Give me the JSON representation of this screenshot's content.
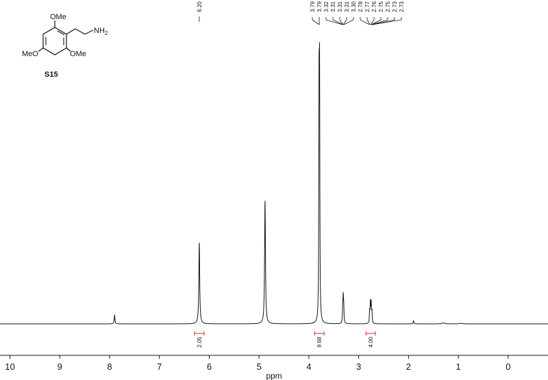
{
  "chart_data": {
    "type": "line",
    "title": "",
    "xlabel": "ppm",
    "ylabel": "",
    "xlim": [
      10.2,
      -0.8
    ],
    "x_reversed": true,
    "xticks": [
      "10",
      "9",
      "8",
      "7",
      "6",
      "5",
      "4",
      "3",
      "2",
      "1",
      "0"
    ],
    "grid": false,
    "peaks": [
      {
        "shift": 7.9,
        "height": 0.03,
        "width": 0.008
      },
      {
        "shift": 6.2,
        "height": 0.27,
        "width": 0.01
      },
      {
        "shift": 4.88,
        "height": 0.41,
        "width": 0.01
      },
      {
        "shift": 3.795,
        "height": 0.73,
        "width": 0.006
      },
      {
        "shift": 3.785,
        "height": 0.72,
        "width": 0.006
      },
      {
        "shift": 3.32,
        "height": 0.05,
        "width": 0.006
      },
      {
        "shift": 3.31,
        "height": 0.08,
        "width": 0.006
      },
      {
        "shift": 3.3,
        "height": 0.05,
        "width": 0.006
      },
      {
        "shift": 2.78,
        "height": 0.04,
        "width": 0.006
      },
      {
        "shift": 2.765,
        "height": 0.065,
        "width": 0.006
      },
      {
        "shift": 2.75,
        "height": 0.065,
        "width": 0.006
      },
      {
        "shift": 2.735,
        "height": 0.04,
        "width": 0.006
      },
      {
        "shift": 1.9,
        "height": 0.01,
        "width": 0.008
      },
      {
        "shift": 1.3,
        "height": 0.003,
        "width": 0.03
      },
      {
        "shift": 0.95,
        "height": 0.002,
        "width": 0.03
      }
    ],
    "peak_labels_single": [
      "6.20"
    ],
    "peak_labels_group": [
      "3.79",
      "3.79",
      "3.32",
      "3.31",
      "3.31",
      "3.31",
      "3.30",
      "2.78",
      "2.77",
      "2.76",
      "2.75",
      "2.75",
      "2.73",
      "2.73"
    ],
    "integrals": [
      {
        "shift": 6.2,
        "value": "2.05"
      },
      {
        "shift": 3.79,
        "value": "9.68"
      },
      {
        "shift": 2.76,
        "value": "4.00"
      }
    ]
  },
  "molecule": {
    "name": "S15",
    "substituents": {
      "top": "OMe",
      "left": "MeO",
      "right": "OMe",
      "amine": "NH",
      "amine_subscript": "2"
    }
  }
}
